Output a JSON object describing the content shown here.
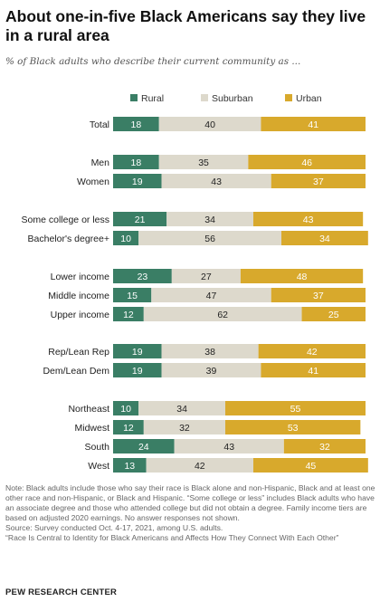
{
  "title": "About one-in-five Black Americans say they live in a rural area",
  "subtitle": "% of Black adults who describe their current community as ...",
  "notes": {
    "note": "Note: Black adults include those who say their race is Black alone and non-Hispanic, Black and at least one other race and non-Hispanic, or Black and Hispanic. “Some college or less” includes Black adults who have an associate degree and those who attended college but did not obtain a degree. Family income tiers are based on adjusted 2020 earnings. No answer responses not shown.",
    "source": "Source: Survey conducted Oct. 4-17, 2021, among U.S. adults.",
    "report": "“Race Is Central to Identity for Black Americans and Affects How They Connect With Each Other”",
    "brand": "PEW RESEARCH CENTER"
  },
  "colors": {
    "Rural": "#3a7e65",
    "Suburban": "#ddd9cc",
    "Urban": "#d8a92c"
  },
  "chart_data": {
    "type": "bar",
    "orientation": "horizontal",
    "stacked": true,
    "x_range": [
      0,
      100
    ],
    "legend_position": "top",
    "grid": false,
    "categories": [
      "Total",
      "Men",
      "Women",
      "Some college or less",
      "Bachelor's degree+",
      "Lower income",
      "Middle income",
      "Upper income",
      "Rep/Lean Rep",
      "Dem/Lean Dem",
      "Northeast",
      "Midwest",
      "South",
      "West"
    ],
    "groups": [
      [
        "Total"
      ],
      [
        "Men",
        "Women"
      ],
      [
        "Some college or less",
        "Bachelor's degree+"
      ],
      [
        "Lower income",
        "Middle income",
        "Upper income"
      ],
      [
        "Rep/Lean Rep",
        "Dem/Lean Dem"
      ],
      [
        "Northeast",
        "Midwest",
        "South",
        "West"
      ]
    ],
    "series": [
      {
        "name": "Rural",
        "values": [
          18,
          18,
          19,
          21,
          10,
          23,
          15,
          12,
          19,
          19,
          10,
          12,
          24,
          13
        ]
      },
      {
        "name": "Suburban",
        "values": [
          40,
          35,
          43,
          34,
          56,
          27,
          47,
          62,
          38,
          39,
          34,
          32,
          43,
          42
        ]
      },
      {
        "name": "Urban",
        "values": [
          41,
          46,
          37,
          43,
          34,
          48,
          37,
          25,
          42,
          41,
          55,
          53,
          32,
          45
        ]
      }
    ]
  }
}
